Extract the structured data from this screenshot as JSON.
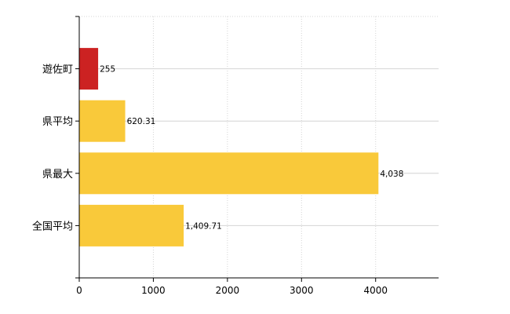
{
  "chart_data": {
    "type": "bar",
    "orientation": "horizontal",
    "categories": [
      "遊佐町",
      "県平均",
      "県最大",
      "全国平均"
    ],
    "values": [
      255,
      620.31,
      4038,
      1409.71
    ],
    "value_labels": [
      "255",
      "620.31",
      "4,038",
      "1,409.71"
    ],
    "bar_colors": [
      "#cc2222",
      "#f9c93a",
      "#f9c93a",
      "#f9c93a"
    ],
    "xlim": [
      0,
      4850
    ],
    "xticks": [
      0,
      1000,
      2000,
      3000,
      4000
    ],
    "xtick_labels": [
      "0",
      "1000",
      "2000",
      "3000",
      "4000"
    ],
    "grid": true,
    "title": "",
    "xlabel": "",
    "ylabel": ""
  }
}
